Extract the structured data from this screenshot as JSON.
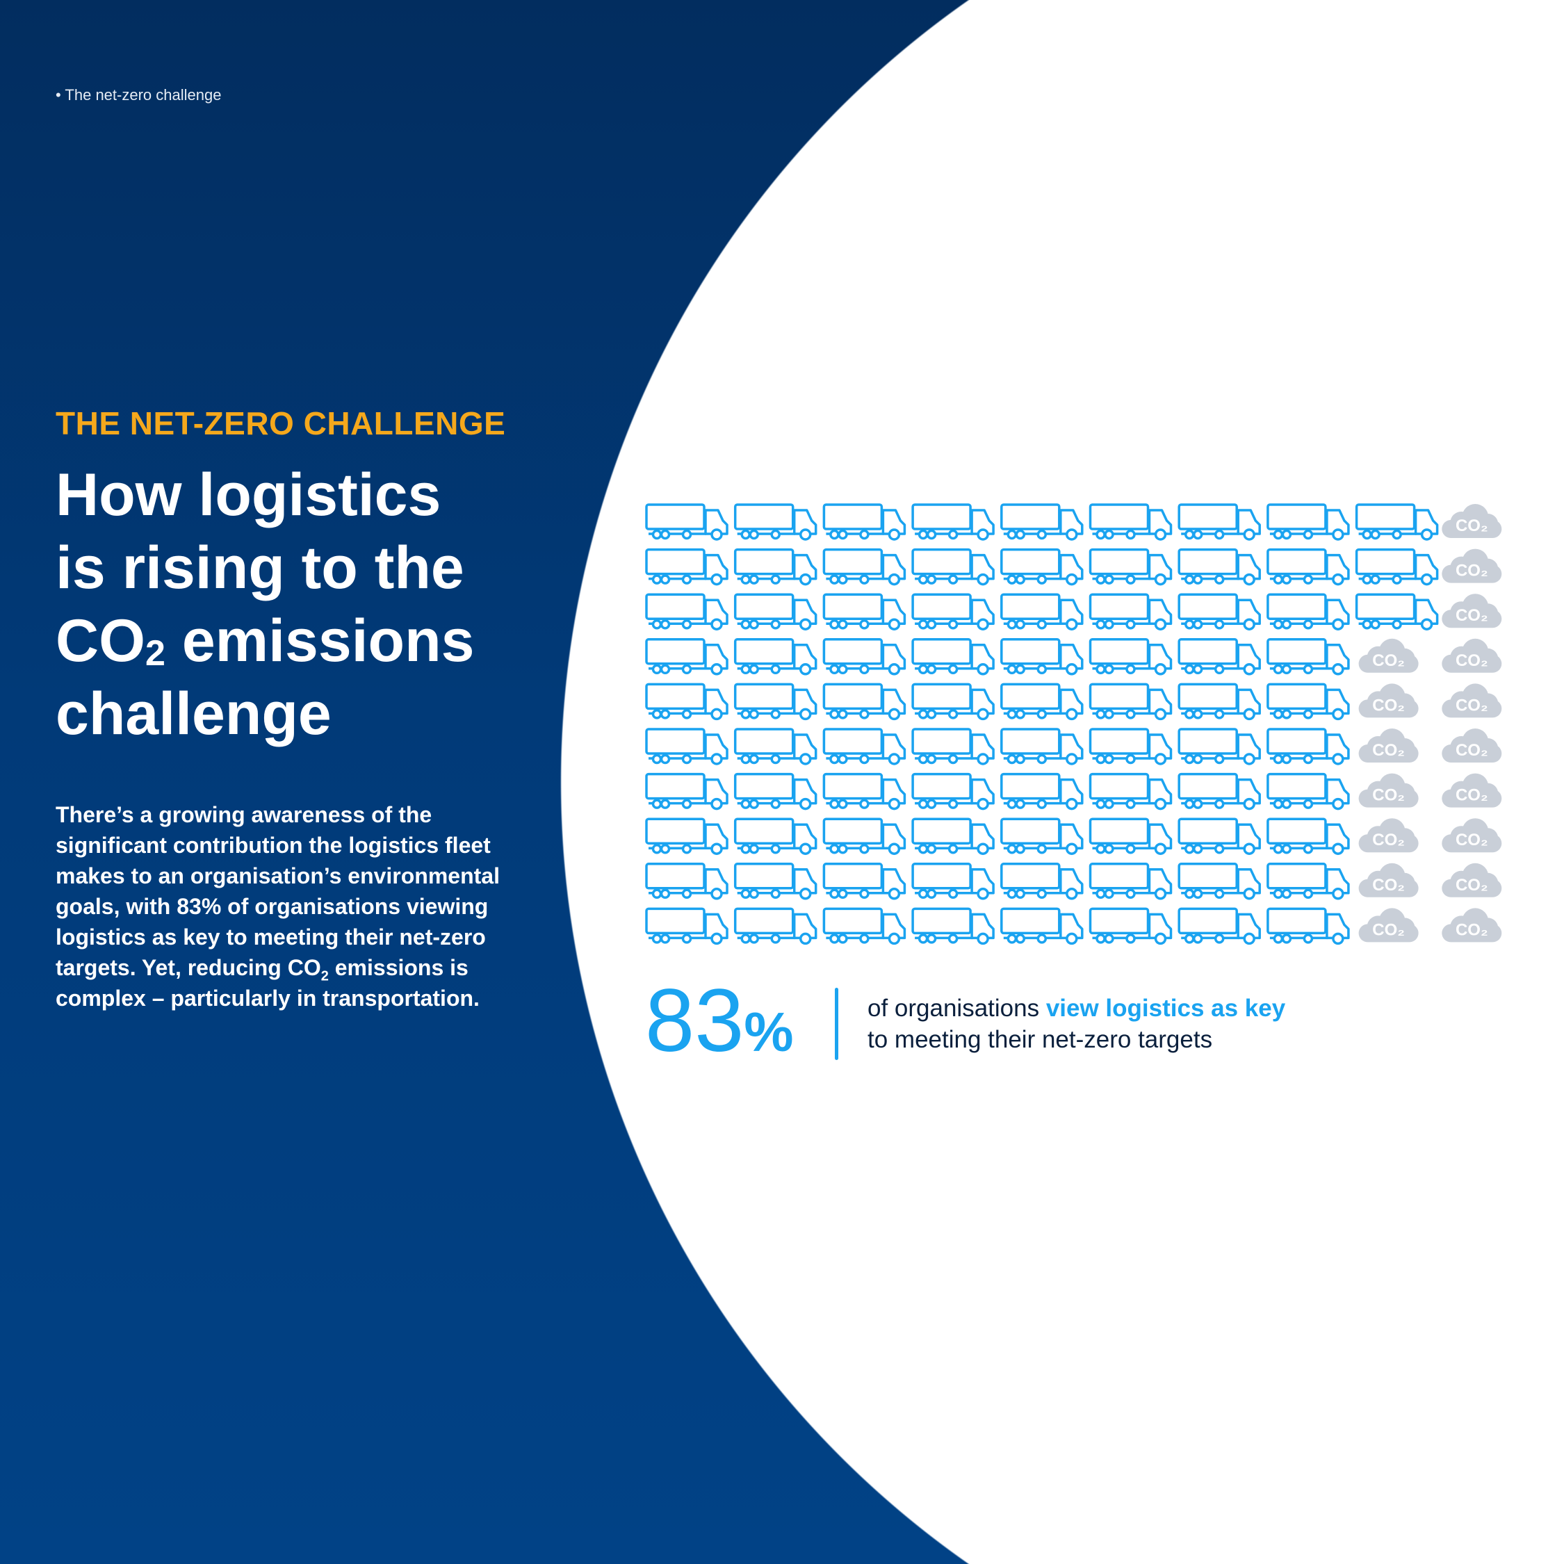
{
  "breadcrumb": "• The net-zero challenge",
  "eyebrow": "THE NET-ZERO CHALLENGE",
  "title": {
    "line1": "How logistics",
    "line2": "is rising to the",
    "line3_pre": "CO",
    "line3_sub": "2",
    "line3_post": " emissions",
    "line4": "challenge"
  },
  "body": {
    "part1": "There’s a growing awareness of the significant contribution the logistics fleet makes to an organisation’s environmental goals, with 83% of organisations viewing logistics as key to meeting their net-zero targets. Yet, reducing CO",
    "sub": "2",
    "part2": " emissions is complex – particularly in transportation."
  },
  "infographic": {
    "truck_count": 83,
    "total": 100,
    "columns": 10,
    "rows": 10,
    "cloud_label": "CO₂",
    "colors": {
      "truck": "#1aa3f0",
      "cloud": "#c9cfd8"
    },
    "column_truck_counts": [
      10,
      10,
      10,
      10,
      10,
      10,
      10,
      10,
      3,
      0
    ]
  },
  "stat": {
    "value": "83",
    "unit": "%",
    "text_pre": "of organisations ",
    "text_highlight": "view logistics as key",
    "text_line2": "to meeting their net-zero targets"
  },
  "colors": {
    "accent_orange": "#f5a81c",
    "accent_blue": "#1aa3f0",
    "navy": "#022d5f"
  }
}
